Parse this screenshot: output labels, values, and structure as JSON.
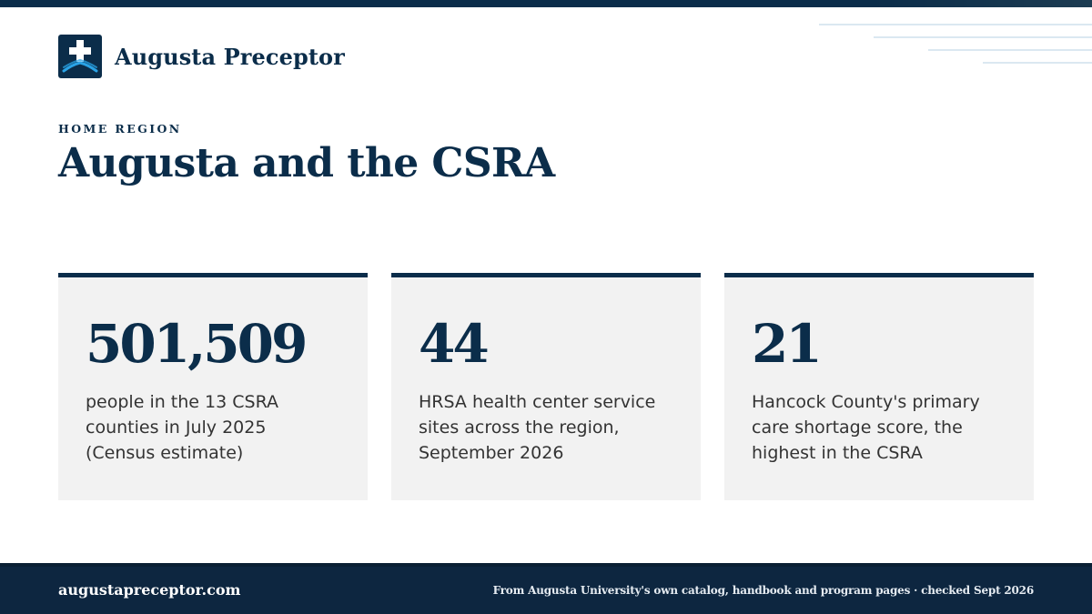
{
  "brand": {
    "name": "Augusta Preceptor",
    "logo_icon": "medical-cross-icon",
    "colors": {
      "navy": "#0b2d4a",
      "accent": "#2aa3e6"
    }
  },
  "header": {
    "eyebrow": "HOME REGION",
    "title": "Augusta and the CSRA"
  },
  "stats": [
    {
      "value": "501,509",
      "description": "people in the 13 CSRA counties in July 2025 (Census estimate)"
    },
    {
      "value": "44",
      "description": "HRSA health center service sites across the region, September 2026"
    },
    {
      "value": "21",
      "description": "Hancock County's primary care shortage score, the highest in the CSRA"
    }
  ],
  "footer": {
    "site": "augustapreceptor.com",
    "note": "From Augusta University's own catalog, handbook and program pages · checked Sept 2026"
  }
}
